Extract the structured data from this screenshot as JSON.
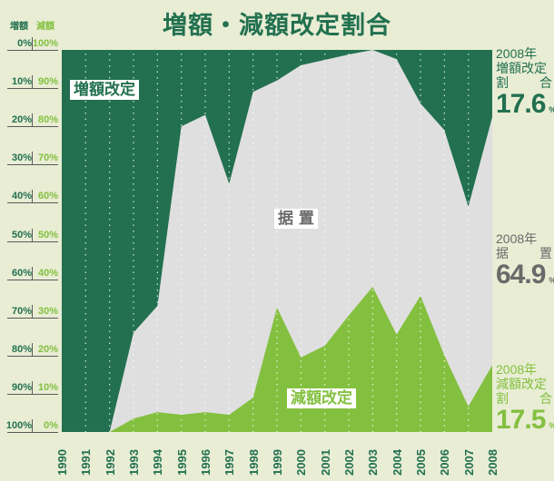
{
  "title": "増額・減額改定割合",
  "axis": {
    "left_header": "増額",
    "right_header": "減額",
    "left_ticks": [
      "0%",
      "10%",
      "20%",
      "30%",
      "40%",
      "50%",
      "60%",
      "70%",
      "80%",
      "90%",
      "100%"
    ],
    "right_ticks": [
      "100%",
      "90%",
      "80%",
      "70%",
      "60%",
      "50%",
      "40%",
      "30%",
      "20%",
      "10%",
      "0%"
    ],
    "years": [
      "1990",
      "1991",
      "1992",
      "1993",
      "1994",
      "1995",
      "1996",
      "1997",
      "1998",
      "1999",
      "2000",
      "2001",
      "2002",
      "2003",
      "2004",
      "2005",
      "2006",
      "2007",
      "2008"
    ]
  },
  "labels": {
    "increase": "増額改定",
    "unchanged": "据 置",
    "decrease": "減額改定"
  },
  "summary": {
    "increase": {
      "year": "2008年",
      "label_top": "増額改定",
      "label_a": "割",
      "label_b": "合",
      "value": "17.6",
      "unit": "%"
    },
    "unchanged": {
      "year": "2008年",
      "label_a": "据",
      "label_b": "置",
      "value": "64.9",
      "unit": "%"
    },
    "decrease": {
      "year": "2008年",
      "label_top": "減額改定",
      "label_a": "割",
      "label_b": "合",
      "value": "17.5",
      "unit": "%"
    }
  },
  "colors": {
    "background": "#e8edd4",
    "increase": "#22704f",
    "unchanged": "#dfdfdf",
    "decrease": "#84c040",
    "unchanged_text": "#6a6a6a"
  },
  "chart_data": {
    "type": "area",
    "title": "増額・減額改定割合",
    "stacked": true,
    "normalized_percent": true,
    "categories": [
      "1990",
      "1991",
      "1992",
      "1993",
      "1994",
      "1995",
      "1996",
      "1997",
      "1998",
      "1999",
      "2000",
      "2001",
      "2002",
      "2003",
      "2004",
      "2005",
      "2006",
      "2007",
      "2008"
    ],
    "series": [
      {
        "name": "増額改定",
        "values": [
          100,
          100,
          100,
          74,
          67,
          20,
          17,
          35,
          11,
          8,
          4,
          2.6,
          1.2,
          0,
          2.4,
          14,
          21,
          41,
          17.6
        ]
      },
      {
        "name": "据置",
        "values": [
          0,
          0,
          0,
          22.5,
          27.8,
          75.5,
          77.8,
          60.5,
          80,
          59.4,
          76.5,
          74.8,
          68.3,
          62,
          72.1,
          50.3,
          59,
          52.3,
          64.9
        ]
      },
      {
        "name": "減額改定",
        "values": [
          0,
          0,
          0,
          3.5,
          5.2,
          4.5,
          5.2,
          4.5,
          9,
          32.6,
          19.5,
          22.6,
          30.5,
          38,
          25.5,
          35.7,
          20,
          6.7,
          17.5
        ]
      }
    ],
    "xlabel": "",
    "ylabel_left": "増額",
    "ylabel_right": "減額",
    "ylim": [
      0,
      100
    ],
    "grid": "vertical dotted lines per year",
    "annotations": [
      "2008年 増額改定割合 17.6%",
      "2008年 据置 64.9%",
      "2008年 減額改定割合 17.5%"
    ]
  }
}
